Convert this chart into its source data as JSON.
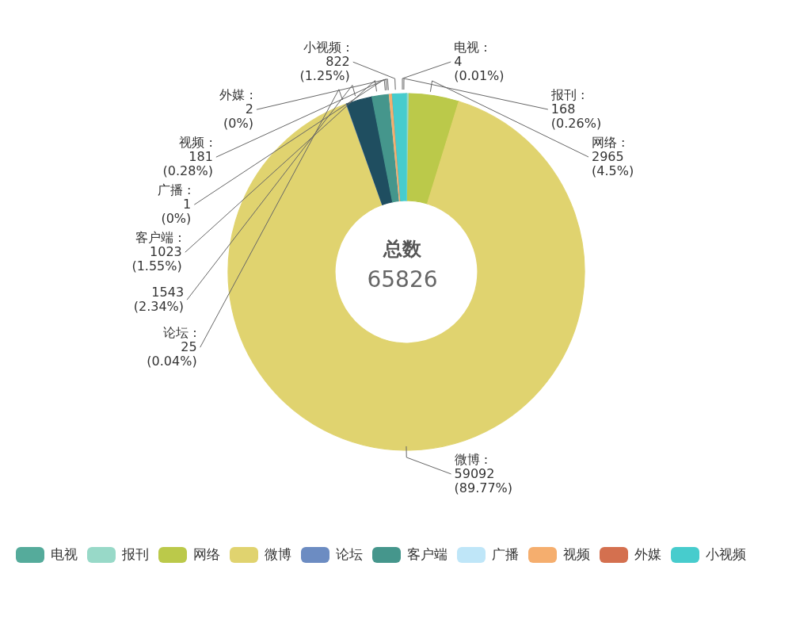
{
  "chart_data": {
    "type": "donut",
    "categories": [
      "电视",
      "报刊",
      "网络",
      "微博",
      "论坛",
      null,
      "客户端",
      "广播",
      "视频",
      "外媒",
      "小视频"
    ],
    "values": [
      4,
      168,
      2965,
      59092,
      25,
      1543,
      1023,
      1,
      181,
      2,
      822
    ],
    "colors": [
      "#55ab9b",
      "#98d9c8",
      "#bbc94a",
      "#e0d36f",
      "#6c8cc2",
      "#1f4e60",
      "#45968c",
      "#bfe6f8",
      "#f5ae6e",
      "#d4704f",
      "#47cccd"
    ],
    "value_labels": [
      "电视 :\n4\n(0.01%)",
      "报刊 :\n168\n(0.26%)",
      "网络 :\n2965\n(4.5%)",
      "微博 :\n59092\n(89.77%)",
      "论坛 :\n25\n(0.04%)",
      "1543\n(2.34%)",
      "客户端 :\n1023\n(1.55%)",
      "广播 :\n1\n(0%)",
      "视频 :\n181\n(0.28%)",
      "外媒 :\n2\n(0%)",
      "小视频 :\n822\n(1.25%)"
    ],
    "legend": "bottom",
    "annotations": [
      "总数",
      "65826"
    ]
  }
}
